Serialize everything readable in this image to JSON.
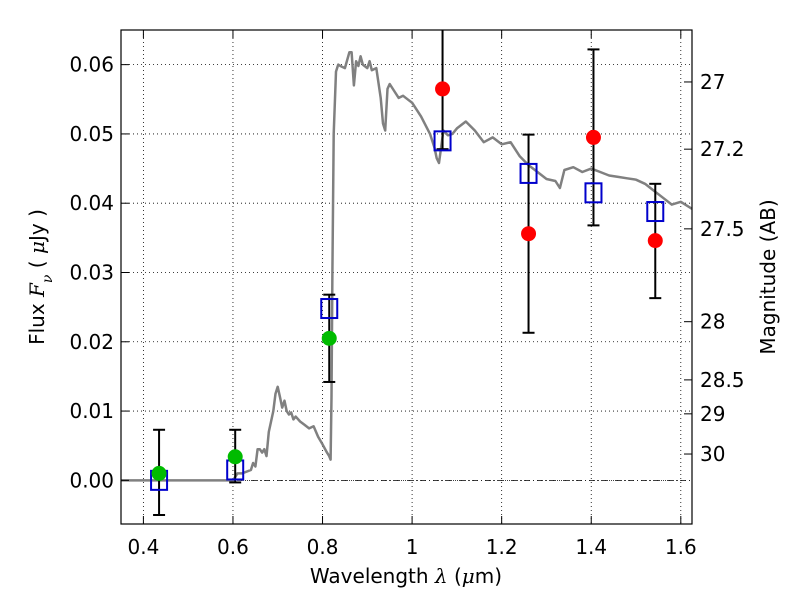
{
  "chart_data": {
    "type": "scatter",
    "xlabel": {
      "prefix": "Wavelength  ",
      "symbol": "λ",
      "unit_open": " (",
      "unit_mu": "μ",
      "unit_rest": "m)"
    },
    "ylabel": {
      "prefix": "Flux  ",
      "symbol": "F",
      "subscript": "ν",
      "unit_open": "  ( ",
      "unit_mu": "μ",
      "unit_rest": "Jy )"
    },
    "y2label": "Magnitude (AB)",
    "xlim": [
      0.35,
      1.625
    ],
    "ylim": [
      -0.0063,
      0.065
    ],
    "x_ticks": [
      0.4,
      0.6,
      0.8,
      1.0,
      1.2,
      1.4,
      1.6
    ],
    "x_tick_labels": [
      "0.4",
      "0.6",
      "0.8",
      "1",
      "1.2",
      "1.4",
      "1.6"
    ],
    "y_ticks": [
      0.0,
      0.01,
      0.02,
      0.03,
      0.04,
      0.05,
      0.06
    ],
    "y_tick_labels": [
      "0.00",
      "0.01",
      "0.02",
      "0.03",
      "0.04",
      "0.05",
      "0.06"
    ],
    "y2_ticks": [
      {
        "label": "27",
        "flux": 0.0575
      },
      {
        "label": "27.2",
        "flux": 0.0478
      },
      {
        "label": "27.5",
        "flux": 0.0363
      },
      {
        "label": "28",
        "flux": 0.0229
      },
      {
        "label": "28.5",
        "flux": 0.0145
      },
      {
        "label": "29",
        "flux": 0.0096
      },
      {
        "label": "30",
        "flux": 0.0038
      }
    ],
    "grid": true,
    "zero_line": true,
    "colors": {
      "model": "#808080",
      "red": "#ff0000",
      "green": "#00bb00",
      "square": "#0000cc",
      "errorbar": "#000000"
    },
    "model_spectrum": {
      "x": [
        0.35,
        0.6,
        0.61,
        0.62,
        0.64,
        0.645,
        0.65,
        0.655,
        0.66,
        0.665,
        0.67,
        0.675,
        0.68,
        0.69,
        0.695,
        0.7,
        0.705,
        0.71,
        0.715,
        0.72,
        0.725,
        0.73,
        0.735,
        0.74,
        0.75,
        0.76,
        0.77,
        0.78,
        0.79,
        0.8,
        0.81,
        0.815,
        0.818,
        0.82,
        0.822,
        0.825,
        0.83,
        0.835,
        0.84,
        0.85,
        0.86,
        0.865,
        0.87,
        0.875,
        0.88,
        0.885,
        0.89,
        0.9,
        0.905,
        0.91,
        0.92,
        0.93,
        0.935,
        0.94,
        0.945,
        0.95,
        0.96,
        0.97,
        0.98,
        0.99,
        1.0,
        1.02,
        1.04,
        1.05,
        1.055,
        1.06,
        1.07,
        1.08,
        1.09,
        1.1,
        1.12,
        1.14,
        1.16,
        1.18,
        1.2,
        1.22,
        1.24,
        1.26,
        1.28,
        1.3,
        1.32,
        1.33,
        1.34,
        1.36,
        1.38,
        1.4,
        1.42,
        1.44,
        1.46,
        1.48,
        1.5,
        1.52,
        1.54,
        1.56,
        1.58,
        1.6,
        1.625
      ],
      "y": [
        0.0,
        0.0,
        0.001,
        0.001,
        0.0015,
        0.0025,
        0.002,
        0.0045,
        0.0045,
        0.004,
        0.0045,
        0.0035,
        0.007,
        0.01,
        0.0125,
        0.0135,
        0.012,
        0.0105,
        0.0115,
        0.01,
        0.0095,
        0.0098,
        0.0088,
        0.0092,
        0.0085,
        0.008,
        0.0075,
        0.0078,
        0.0063,
        0.0052,
        0.004,
        0.0035,
        0.003,
        0.012,
        0.03,
        0.05,
        0.059,
        0.06,
        0.0598,
        0.0595,
        0.0618,
        0.0618,
        0.057,
        0.0605,
        0.0598,
        0.0612,
        0.06,
        0.0595,
        0.0605,
        0.0592,
        0.0595,
        0.0552,
        0.0515,
        0.0505,
        0.0565,
        0.0572,
        0.0562,
        0.0552,
        0.0555,
        0.055,
        0.0545,
        0.0525,
        0.05,
        0.048,
        0.0465,
        0.0458,
        0.0505,
        0.0498,
        0.05,
        0.0508,
        0.0518,
        0.0505,
        0.0488,
        0.0495,
        0.0485,
        0.0488,
        0.0468,
        0.0455,
        0.0445,
        0.0435,
        0.0432,
        0.0422,
        0.0448,
        0.0452,
        0.0445,
        0.045,
        0.0445,
        0.044,
        0.0438,
        0.0436,
        0.0434,
        0.0428,
        0.0418,
        0.0408,
        0.0398,
        0.0402,
        0.0392
      ]
    },
    "series": [
      {
        "marker": "square",
        "points": [
          {
            "x": 0.435,
            "y": 0.0
          },
          {
            "x": 0.605,
            "y": 0.0015
          },
          {
            "x": 0.815,
            "y": 0.0248
          },
          {
            "x": 1.068,
            "y": 0.049
          },
          {
            "x": 1.26,
            "y": 0.0443
          },
          {
            "x": 1.405,
            "y": 0.0415
          },
          {
            "x": 1.543,
            "y": 0.0388
          }
        ]
      },
      {
        "marker": "circle-green",
        "points": [
          {
            "x": 0.435,
            "y": 0.001,
            "yerr_low": -0.005,
            "yerr_high": 0.0073
          },
          {
            "x": 0.605,
            "y": 0.0034,
            "yerr_low": -0.0003,
            "yerr_high": 0.0073
          },
          {
            "x": 0.815,
            "y": 0.0205,
            "yerr_low": 0.0142,
            "yerr_high": 0.0268
          }
        ]
      },
      {
        "marker": "circle-red",
        "points": [
          {
            "x": 1.068,
            "y": 0.0565,
            "yerr_low": 0.0478,
            "yerr_high": 0.066
          },
          {
            "x": 1.26,
            "y": 0.0356,
            "yerr_low": 0.0213,
            "yerr_high": 0.0499
          },
          {
            "x": 1.405,
            "y": 0.0495,
            "yerr_low": 0.0368,
            "yerr_high": 0.0622
          },
          {
            "x": 1.543,
            "y": 0.0346,
            "yerr_low": 0.0263,
            "yerr_high": 0.0428
          }
        ]
      }
    ]
  }
}
